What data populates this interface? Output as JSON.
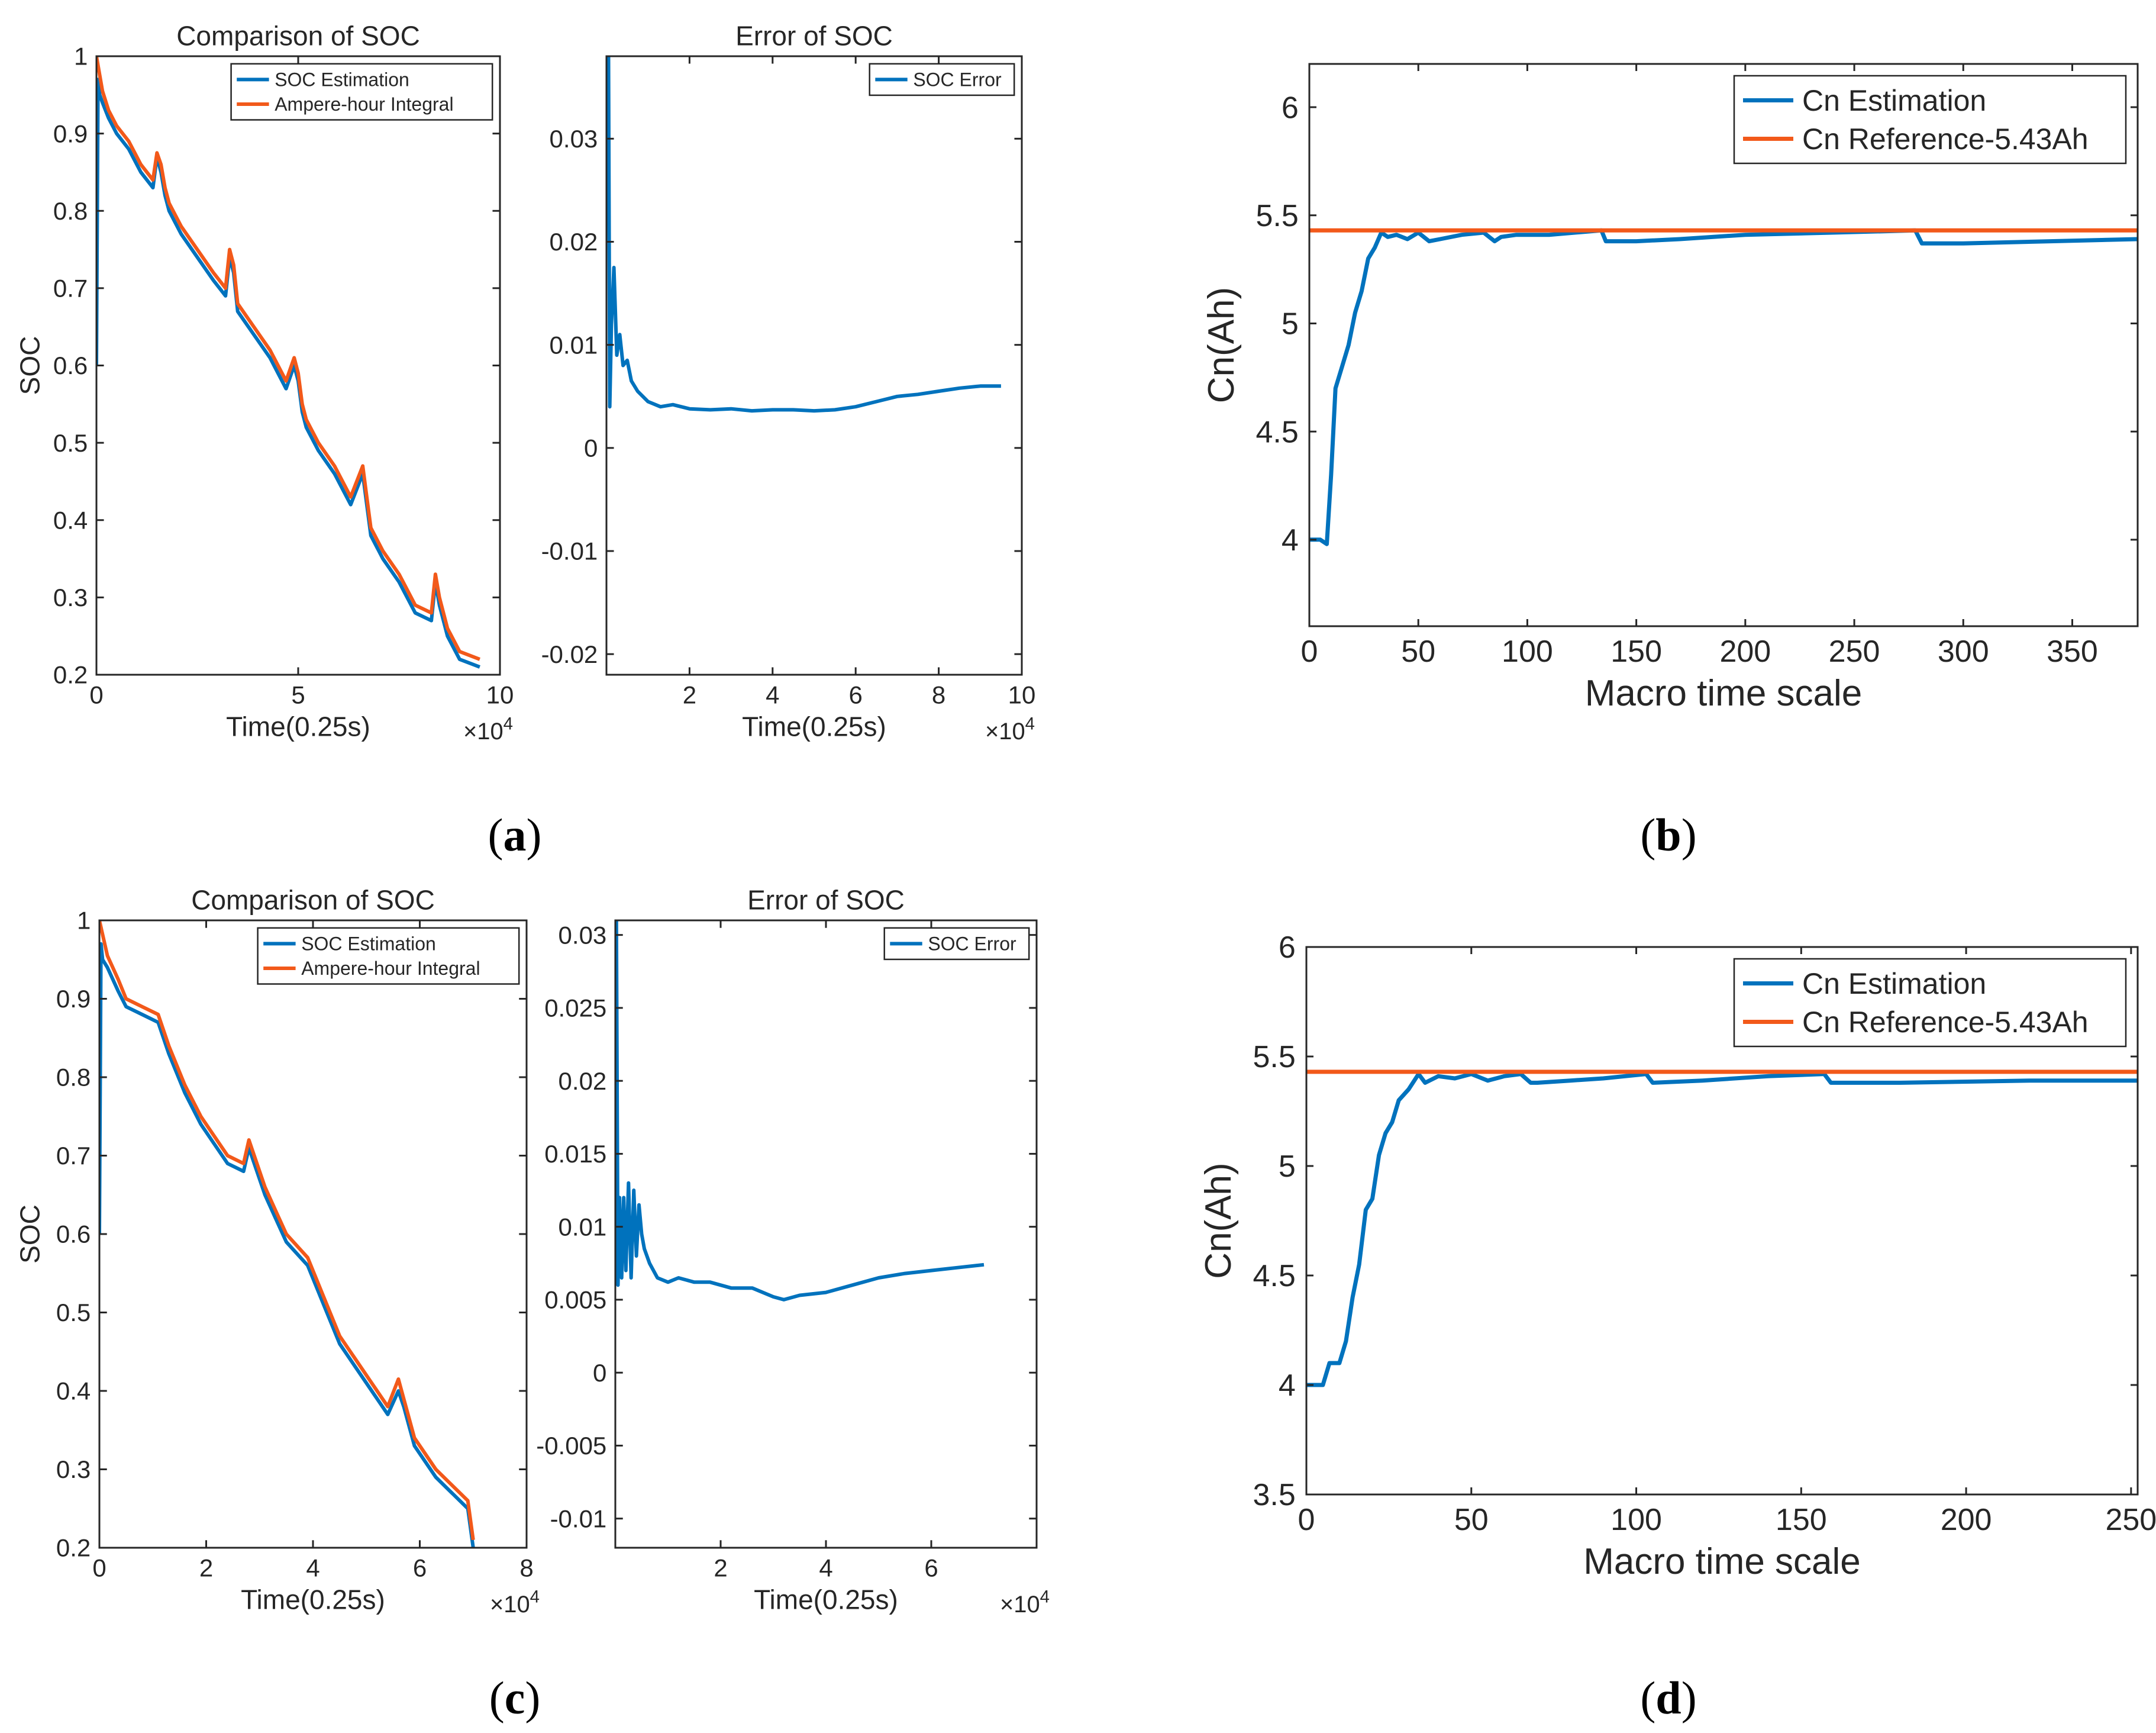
{
  "colors": {
    "estimation": "#0072BD",
    "reference": "#F2591A",
    "axis": "#262626",
    "tick_text": "#262626"
  },
  "panel_labels": {
    "a": {
      "open": "(",
      "letter": "a",
      "close": ")"
    },
    "b": {
      "open": "(",
      "letter": "b",
      "close": ")"
    },
    "c": {
      "open": "(",
      "letter": "c",
      "close": ")"
    },
    "d": {
      "open": "(",
      "letter": "d",
      "close": ")"
    }
  },
  "chart_data": [
    {
      "id": "a_soc",
      "type": "line",
      "title": "Comparison of SOC",
      "xlabel": "Time(0.25s)",
      "ylabel": "SOC",
      "exponent_label": {
        "base": "×10",
        "exp": "4"
      },
      "xlim": [
        0,
        10
      ],
      "ylim": [
        0.2,
        1.0
      ],
      "xticks": [
        0,
        5,
        10
      ],
      "xtick_labels": [
        "0",
        "5",
        "10"
      ],
      "yticks": [
        0.2,
        0.3,
        0.4,
        0.5,
        0.6,
        0.7,
        0.8,
        0.9,
        1.0
      ],
      "ytick_labels": [
        "0.2",
        "0.3",
        "0.4",
        "0.5",
        "0.6",
        "0.7",
        "0.8",
        "0.9",
        "1"
      ],
      "legend": {
        "position": "top-right",
        "font": "small"
      },
      "series": [
        {
          "name": "SOC Estimation",
          "color_key": "estimation",
          "x": [
            0,
            0.04,
            0.08,
            0.15,
            0.3,
            0.5,
            0.8,
            1.1,
            1.4,
            1.5,
            1.6,
            1.7,
            1.8,
            2.1,
            2.5,
            2.9,
            3.2,
            3.3,
            3.4,
            3.5,
            3.9,
            4.3,
            4.7,
            4.9,
            5.0,
            5.1,
            5.2,
            5.5,
            5.9,
            6.3,
            6.6,
            6.7,
            6.8,
            7.1,
            7.5,
            7.9,
            8.3,
            8.4,
            8.5,
            8.7,
            9.0,
            9.5
          ],
          "y": [
            0.6,
            0.97,
            0.95,
            0.94,
            0.92,
            0.9,
            0.88,
            0.85,
            0.83,
            0.87,
            0.85,
            0.82,
            0.8,
            0.77,
            0.74,
            0.71,
            0.69,
            0.74,
            0.72,
            0.67,
            0.64,
            0.61,
            0.57,
            0.6,
            0.58,
            0.54,
            0.52,
            0.49,
            0.46,
            0.42,
            0.46,
            0.42,
            0.38,
            0.35,
            0.32,
            0.28,
            0.27,
            0.32,
            0.29,
            0.25,
            0.22,
            0.21
          ]
        },
        {
          "name": "Ampere-hour Integral",
          "color_key": "reference",
          "x": [
            0,
            0.15,
            0.3,
            0.5,
            0.8,
            1.1,
            1.4,
            1.5,
            1.6,
            1.7,
            1.8,
            2.1,
            2.5,
            2.9,
            3.2,
            3.3,
            3.4,
            3.5,
            3.9,
            4.3,
            4.7,
            4.9,
            5.0,
            5.1,
            5.2,
            5.5,
            5.9,
            6.3,
            6.6,
            6.7,
            6.8,
            7.1,
            7.5,
            7.9,
            8.3,
            8.4,
            8.5,
            8.7,
            9.0,
            9.5
          ],
          "y": [
            1.0,
            0.955,
            0.93,
            0.91,
            0.89,
            0.86,
            0.84,
            0.875,
            0.86,
            0.83,
            0.81,
            0.78,
            0.75,
            0.72,
            0.7,
            0.75,
            0.73,
            0.68,
            0.65,
            0.62,
            0.58,
            0.61,
            0.59,
            0.55,
            0.53,
            0.5,
            0.47,
            0.43,
            0.47,
            0.43,
            0.39,
            0.36,
            0.33,
            0.29,
            0.28,
            0.33,
            0.3,
            0.26,
            0.23,
            0.22
          ]
        }
      ]
    },
    {
      "id": "a_err",
      "type": "line",
      "title": "Error of SOC",
      "xlabel": "Time(0.25s)",
      "ylabel": "",
      "exponent_label": {
        "base": "×10",
        "exp": "4"
      },
      "xlim": [
        0,
        10
      ],
      "ylim": [
        -0.022,
        0.038
      ],
      "xticks": [
        2,
        4,
        6,
        8,
        10
      ],
      "xtick_labels": [
        "2",
        "4",
        "6",
        "8",
        "10"
      ],
      "yticks": [
        -0.02,
        -0.01,
        0,
        0.01,
        0.02,
        0.03
      ],
      "ytick_labels": [
        "-0.02",
        "-0.01",
        "0",
        "0.01",
        "0.02",
        "0.03"
      ],
      "legend": {
        "position": "top-right",
        "font": "small"
      },
      "series": [
        {
          "name": "SOC Error",
          "color_key": "estimation",
          "x": [
            0.05,
            0.08,
            0.12,
            0.18,
            0.25,
            0.32,
            0.4,
            0.5,
            0.6,
            0.75,
            1.0,
            1.3,
            1.6,
            2.0,
            2.5,
            3.0,
            3.5,
            4.0,
            4.5,
            5.0,
            5.5,
            6.0,
            6.5,
            7.0,
            7.5,
            8.0,
            8.5,
            9.0,
            9.5
          ],
          "y": [
            0.038,
            0.004,
            0.012,
            0.0175,
            0.009,
            0.011,
            0.008,
            0.0085,
            0.0065,
            0.0055,
            0.0045,
            0.004,
            0.0042,
            0.0038,
            0.0037,
            0.0038,
            0.0036,
            0.0037,
            0.0037,
            0.0036,
            0.0037,
            0.004,
            0.0045,
            0.005,
            0.0052,
            0.0055,
            0.0058,
            0.006,
            0.006
          ]
        }
      ]
    },
    {
      "id": "b",
      "type": "line",
      "title": "",
      "xlabel": "Macro time scale",
      "ylabel": "Cn(Ah)",
      "xlim": [
        0,
        380
      ],
      "ylim": [
        3.6,
        6.2
      ],
      "xticks": [
        0,
        50,
        100,
        150,
        200,
        250,
        300,
        350
      ],
      "xtick_labels": [
        "0",
        "50",
        "100",
        "150",
        "200",
        "250",
        "300",
        "350"
      ],
      "yticks": [
        4,
        4.5,
        5,
        5.5,
        6
      ],
      "ytick_labels": [
        "4",
        "4.5",
        "5",
        "5.5",
        "6"
      ],
      "legend": {
        "position": "top-right",
        "font": "large"
      },
      "series": [
        {
          "name": "Cn Estimation",
          "color_key": "estimation",
          "x": [
            0,
            5,
            8,
            10,
            12,
            15,
            18,
            21,
            24,
            27,
            30,
            33,
            36,
            40,
            45,
            50,
            55,
            60,
            70,
            80,
            85,
            88,
            95,
            110,
            134,
            136,
            150,
            170,
            200,
            240,
            278,
            281,
            300,
            340,
            380
          ],
          "y": [
            4.0,
            4.0,
            3.98,
            4.3,
            4.7,
            4.8,
            4.9,
            5.05,
            5.15,
            5.3,
            5.35,
            5.42,
            5.4,
            5.41,
            5.39,
            5.42,
            5.38,
            5.39,
            5.41,
            5.42,
            5.38,
            5.4,
            5.41,
            5.41,
            5.43,
            5.38,
            5.38,
            5.39,
            5.41,
            5.42,
            5.43,
            5.37,
            5.37,
            5.38,
            5.39
          ]
        },
        {
          "name": "Cn Reference-5.43Ah",
          "color_key": "reference",
          "x": [
            0,
            380
          ],
          "y": [
            5.43,
            5.43
          ]
        }
      ]
    },
    {
      "id": "c_soc",
      "type": "line",
      "title": "Comparison of SOC",
      "xlabel": "Time(0.25s)",
      "ylabel": "SOC",
      "exponent_label": {
        "base": "×10",
        "exp": "4"
      },
      "xlim": [
        0,
        8
      ],
      "ylim": [
        0.2,
        1.0
      ],
      "xticks": [
        0,
        2,
        4,
        6,
        8
      ],
      "xtick_labels": [
        "0",
        "2",
        "4",
        "6",
        "8"
      ],
      "yticks": [
        0.2,
        0.3,
        0.4,
        0.5,
        0.6,
        0.7,
        0.8,
        0.9,
        1.0
      ],
      "ytick_labels": [
        "0.2",
        "0.3",
        "0.4",
        "0.5",
        "0.6",
        "0.7",
        "0.8",
        "0.9",
        "1"
      ],
      "legend": {
        "position": "top-right",
        "font": "small"
      },
      "series": [
        {
          "name": "SOC Estimation",
          "color_key": "estimation",
          "x": [
            0,
            0.03,
            0.06,
            0.15,
            0.35,
            0.5,
            0.8,
            1.1,
            1.3,
            1.6,
            1.9,
            2.1,
            2.4,
            2.7,
            2.8,
            2.9,
            3.1,
            3.3,
            3.5,
            3.9,
            4.2,
            4.5,
            4.8,
            5.1,
            5.4,
            5.6,
            5.7,
            5.9,
            6.3,
            6.6,
            6.9,
            7.0
          ],
          "y": [
            0.6,
            0.97,
            0.95,
            0.94,
            0.91,
            0.89,
            0.88,
            0.87,
            0.83,
            0.78,
            0.74,
            0.72,
            0.69,
            0.68,
            0.71,
            0.69,
            0.65,
            0.62,
            0.59,
            0.56,
            0.51,
            0.46,
            0.43,
            0.4,
            0.37,
            0.4,
            0.38,
            0.33,
            0.29,
            0.27,
            0.25,
            0.2
          ]
        },
        {
          "name": "Ampere-hour Integral",
          "color_key": "reference",
          "x": [
            0,
            0.15,
            0.35,
            0.5,
            0.8,
            1.1,
            1.3,
            1.6,
            1.9,
            2.1,
            2.4,
            2.7,
            2.8,
            2.9,
            3.1,
            3.3,
            3.5,
            3.9,
            4.2,
            4.5,
            4.8,
            5.1,
            5.4,
            5.6,
            5.7,
            5.9,
            6.3,
            6.6,
            6.9,
            7.0
          ],
          "y": [
            1.0,
            0.955,
            0.925,
            0.9,
            0.89,
            0.88,
            0.84,
            0.79,
            0.75,
            0.73,
            0.7,
            0.69,
            0.72,
            0.7,
            0.66,
            0.63,
            0.6,
            0.57,
            0.52,
            0.47,
            0.44,
            0.41,
            0.38,
            0.415,
            0.39,
            0.34,
            0.3,
            0.28,
            0.26,
            0.21
          ]
        }
      ]
    },
    {
      "id": "c_err",
      "type": "line",
      "title": "Error of SOC",
      "xlabel": "Time(0.25s)",
      "ylabel": "",
      "exponent_label": {
        "base": "×10",
        "exp": "4"
      },
      "xlim": [
        0,
        8
      ],
      "ylim": [
        -0.012,
        0.031
      ],
      "xticks": [
        2,
        4,
        6
      ],
      "xtick_labels": [
        "2",
        "4",
        "6"
      ],
      "yticks": [
        -0.01,
        -0.005,
        0,
        0.005,
        0.01,
        0.015,
        0.02,
        0.025,
        0.03
      ],
      "ytick_labels": [
        "-0.01",
        "-0.005",
        "0",
        "0.005",
        "0.01",
        "0.015",
        "0.02",
        "0.025",
        "0.03"
      ],
      "legend": {
        "position": "top-right",
        "font": "small"
      },
      "series": [
        {
          "name": "SOC Error",
          "color_key": "estimation",
          "x": [
            0.02,
            0.05,
            0.08,
            0.12,
            0.16,
            0.2,
            0.25,
            0.3,
            0.35,
            0.4,
            0.45,
            0.5,
            0.55,
            0.65,
            0.8,
            1.0,
            1.2,
            1.5,
            1.8,
            2.2,
            2.6,
            3.0,
            3.2,
            3.5,
            4.0,
            4.5,
            5.0,
            5.5,
            6.0,
            6.5,
            7.0
          ],
          "y": [
            0.031,
            0.006,
            0.012,
            0.0065,
            0.012,
            0.007,
            0.013,
            0.0065,
            0.0125,
            0.008,
            0.0115,
            0.0095,
            0.0085,
            0.0075,
            0.0065,
            0.0062,
            0.0065,
            0.0062,
            0.0062,
            0.0058,
            0.0058,
            0.0052,
            0.005,
            0.0053,
            0.0055,
            0.006,
            0.0065,
            0.0068,
            0.007,
            0.0072,
            0.0074
          ]
        }
      ]
    },
    {
      "id": "d",
      "type": "line",
      "title": "",
      "xlabel": "Macro time scale",
      "ylabel": "Cn(Ah)",
      "xlim": [
        0,
        252
      ],
      "ylim": [
        3.5,
        6.0
      ],
      "xticks": [
        0,
        50,
        100,
        150,
        200,
        250
      ],
      "xtick_labels": [
        "0",
        "50",
        "100",
        "150",
        "200",
        "250"
      ],
      "yticks": [
        3.5,
        4,
        4.5,
        5,
        5.5,
        6
      ],
      "ytick_labels": [
        "3.5",
        "4",
        "4.5",
        "5",
        "5.5",
        "6"
      ],
      "legend": {
        "position": "top-right",
        "font": "large"
      },
      "series": [
        {
          "name": "Cn Estimation",
          "color_key": "estimation",
          "x": [
            0,
            5,
            7,
            10,
            12,
            14,
            16,
            18,
            20,
            22,
            24,
            26,
            28,
            31,
            34,
            36,
            40,
            45,
            50,
            55,
            60,
            65,
            68,
            70,
            80,
            90,
            103,
            105,
            120,
            140,
            157,
            159,
            180,
            220,
            252
          ],
          "y": [
            4.0,
            4.0,
            4.1,
            4.1,
            4.2,
            4.4,
            4.55,
            4.8,
            4.85,
            5.05,
            5.15,
            5.2,
            5.3,
            5.35,
            5.42,
            5.38,
            5.41,
            5.4,
            5.42,
            5.39,
            5.41,
            5.42,
            5.38,
            5.38,
            5.39,
            5.4,
            5.42,
            5.38,
            5.39,
            5.41,
            5.42,
            5.38,
            5.38,
            5.39,
            5.39
          ]
        },
        {
          "name": "Cn Reference-5.43Ah",
          "color_key": "reference",
          "x": [
            0,
            252
          ],
          "y": [
            5.43,
            5.43
          ]
        }
      ]
    }
  ]
}
